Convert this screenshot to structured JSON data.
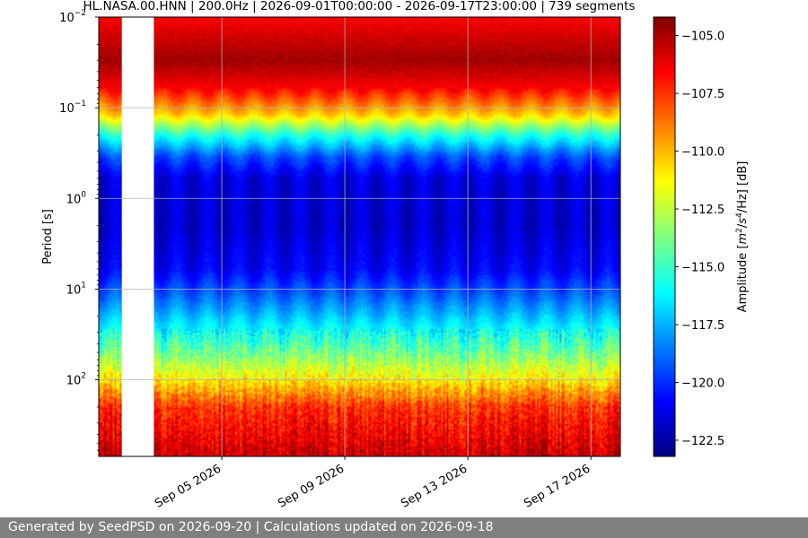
{
  "chart_data": {
    "type": "heatmap",
    "title": "HL.NASA.00.HNN | 200.0Hz | 2026-09-01T00:00:00 - 2026-09-17T23:00:00 | 739 segments",
    "xlabel": "",
    "ylabel": "Period [s]",
    "x_range": [
      "2026-09-01T00:00:00",
      "2026-09-17T23:00:00"
    ],
    "x_ticks": [
      {
        "date": "2026-09-05",
        "label": "Sep 05 2026"
      },
      {
        "date": "2026-09-09",
        "label": "Sep 09 2026"
      },
      {
        "date": "2026-09-13",
        "label": "Sep 13 2026"
      },
      {
        "date": "2026-09-17",
        "label": "Sep 17 2026"
      }
    ],
    "y_scale": "log",
    "y_inverted": true,
    "ylim": [
      0.01,
      700
    ],
    "y_ticks": [
      {
        "value": 0.01,
        "label": "10",
        "exp": "−2"
      },
      {
        "value": 0.1,
        "label": "10",
        "exp": "−1"
      },
      {
        "value": 1,
        "label": "10",
        "exp": "0"
      },
      {
        "value": 10,
        "label": "10",
        "exp": "1"
      },
      {
        "value": 100,
        "label": "10",
        "exp": "2"
      }
    ],
    "grid": true,
    "data_gap": [
      "2026-09-01T18:00:00",
      "2026-09-02T19:00:00"
    ],
    "colorbar": {
      "label": "Amplitude [m²/s⁴/Hz] [dB]",
      "label_parts": {
        "pre": "Amplitude [",
        "m": "m",
        "two": "2",
        "mid": "/",
        "s": "s",
        "four": "4",
        "tail": "/Hz] [dB]"
      },
      "colormap": "jet",
      "range": [
        -123.2,
        -104.2
      ],
      "ticks": [
        {
          "value": -105.0,
          "label": "−105.0"
        },
        {
          "value": -107.5,
          "label": "−107.5"
        },
        {
          "value": -110.0,
          "label": "−110.0"
        },
        {
          "value": -112.5,
          "label": "−112.5"
        },
        {
          "value": -115.0,
          "label": "−115.0"
        },
        {
          "value": -117.5,
          "label": "−117.5"
        },
        {
          "value": -120.0,
          "label": "−120.0"
        },
        {
          "value": -122.5,
          "label": "−122.5"
        }
      ]
    },
    "profile": [
      {
        "period": 0.01,
        "db": -106.5
      },
      {
        "period": 0.03,
        "db": -104.8
      },
      {
        "period": 0.06,
        "db": -106.5
      },
      {
        "period": 0.12,
        "db": -110.5
      },
      {
        "period": 0.2,
        "db": -115.5
      },
      {
        "period": 0.35,
        "db": -119.5
      },
      {
        "period": 0.6,
        "db": -121.5
      },
      {
        "period": 2,
        "db": -121.8
      },
      {
        "period": 6,
        "db": -121.0
      },
      {
        "period": 12,
        "db": -119.0
      },
      {
        "period": 25,
        "db": -116.5
      },
      {
        "period": 50,
        "db": -114.0
      },
      {
        "period": 100,
        "db": -111.0
      },
      {
        "period": 200,
        "db": -107.5
      },
      {
        "period": 700,
        "db": -105.5
      }
    ]
  },
  "footer": {
    "text": "Generated by SeedPSD on 2026-09-20 | Calculations updated on 2026-09-18"
  }
}
